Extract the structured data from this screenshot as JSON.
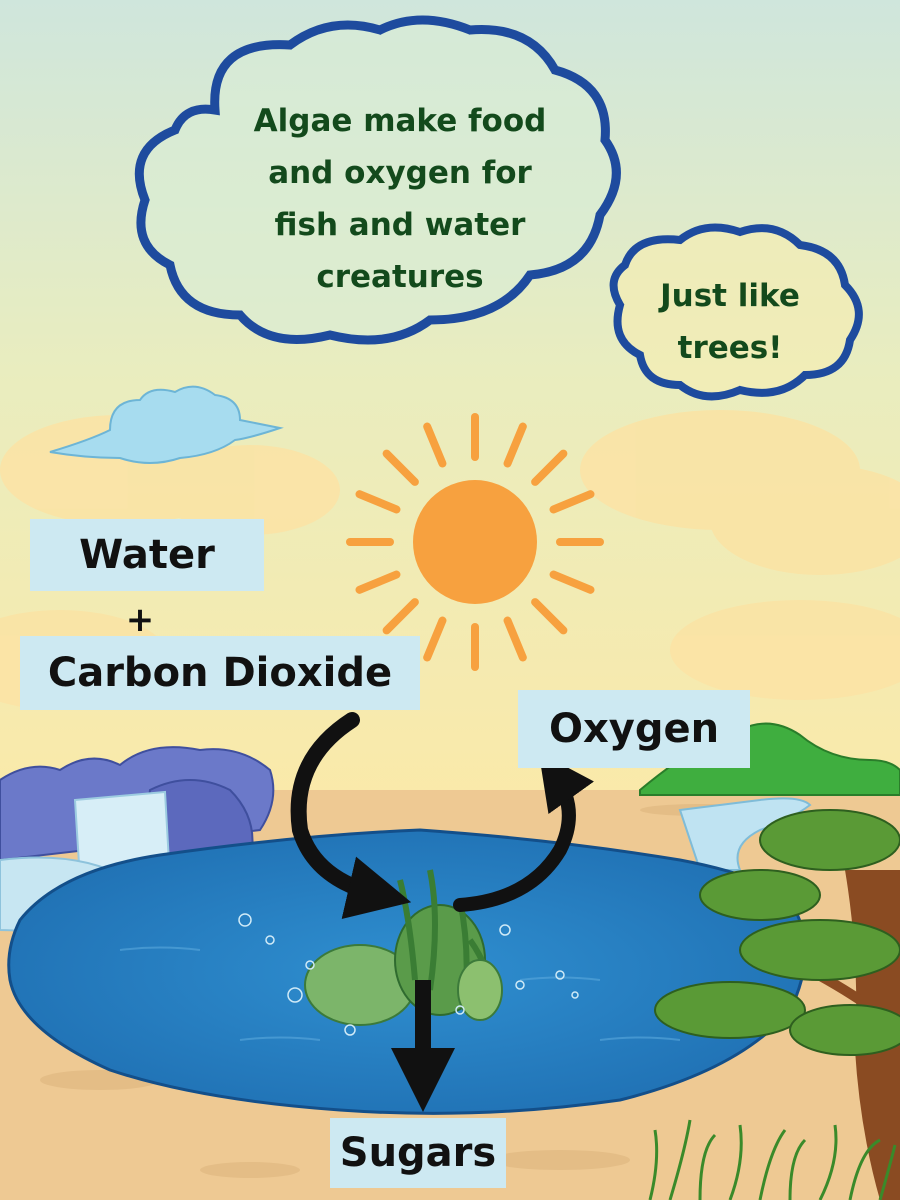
{
  "callouts": {
    "main": [
      "Algae make food",
      "and oxygen for",
      "fish and water",
      "creatures"
    ],
    "small": [
      "Just like",
      "trees!"
    ]
  },
  "labels": {
    "water": "Water",
    "plus": "+",
    "carbon_dioxide": "Carbon Dioxide",
    "oxygen": "Oxygen",
    "sugars": "Sugars"
  },
  "colors": {
    "sky_top": "#cfe6dc",
    "sky_bottom": "#fbe9a8",
    "sun": "#f7a13f",
    "lake": "#2a86c6",
    "sand": "#eec993",
    "cloud_outline": "#1e4b9e",
    "callout_text": "#134a1c",
    "label_box": "#cde9f2"
  }
}
